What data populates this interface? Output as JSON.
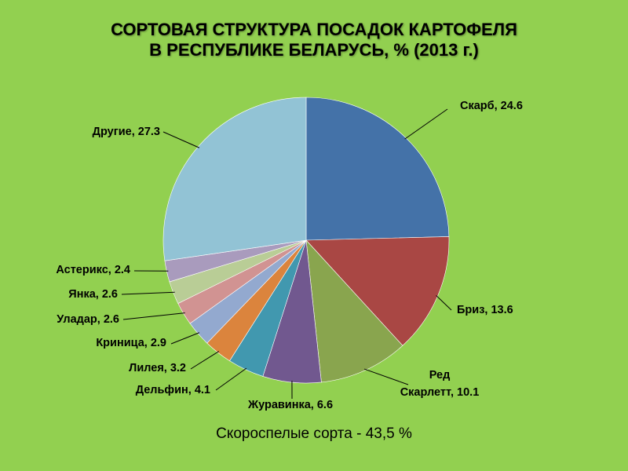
{
  "title_line1": "СОРТОВАЯ СТРУКТУРА ПОСАДОК КАРТОФЕЛЯ",
  "title_line2": "В РЕСПУБЛИКЕ БЕЛАРУСЬ, % (2013 г.)",
  "footer": "Скороспелые сорта - 43,5 %",
  "chart_data": {
    "type": "pie",
    "title": "СОРТОВАЯ СТРУКТУРА ПОСАДОК КАРТОФЕЛЯ В РЕСПУБЛИКЕ БЕЛАРУСЬ, % (2013 г.)",
    "unit": "%",
    "slices": [
      {
        "label": "Скарб",
        "value": 24.6,
        "color": "#4472A8"
      },
      {
        "label": "Бриз",
        "value": 13.6,
        "color": "#A94744"
      },
      {
        "label": "Ред Скарлетт",
        "value": 10.1,
        "color": "#89A54E"
      },
      {
        "label": "Журавинка",
        "value": 6.6,
        "color": "#71588F"
      },
      {
        "label": "Дельфин",
        "value": 4.1,
        "color": "#4198AF"
      },
      {
        "label": "Лилея",
        "value": 3.2,
        "color": "#DB843D"
      },
      {
        "label": "Криница",
        "value": 2.9,
        "color": "#93A9CF"
      },
      {
        "label": "Уладар",
        "value": 2.6,
        "color": "#D19392"
      },
      {
        "label": "Янка",
        "value": 2.6,
        "color": "#B9CD96"
      },
      {
        "label": "Астерикс",
        "value": 2.4,
        "color": "#A99BBD"
      },
      {
        "label": "Другие",
        "value": 27.3,
        "color": "#92C3D5"
      }
    ],
    "start_angle": "12 o'clock",
    "direction": "clockwise",
    "data_labels": "label, value"
  }
}
